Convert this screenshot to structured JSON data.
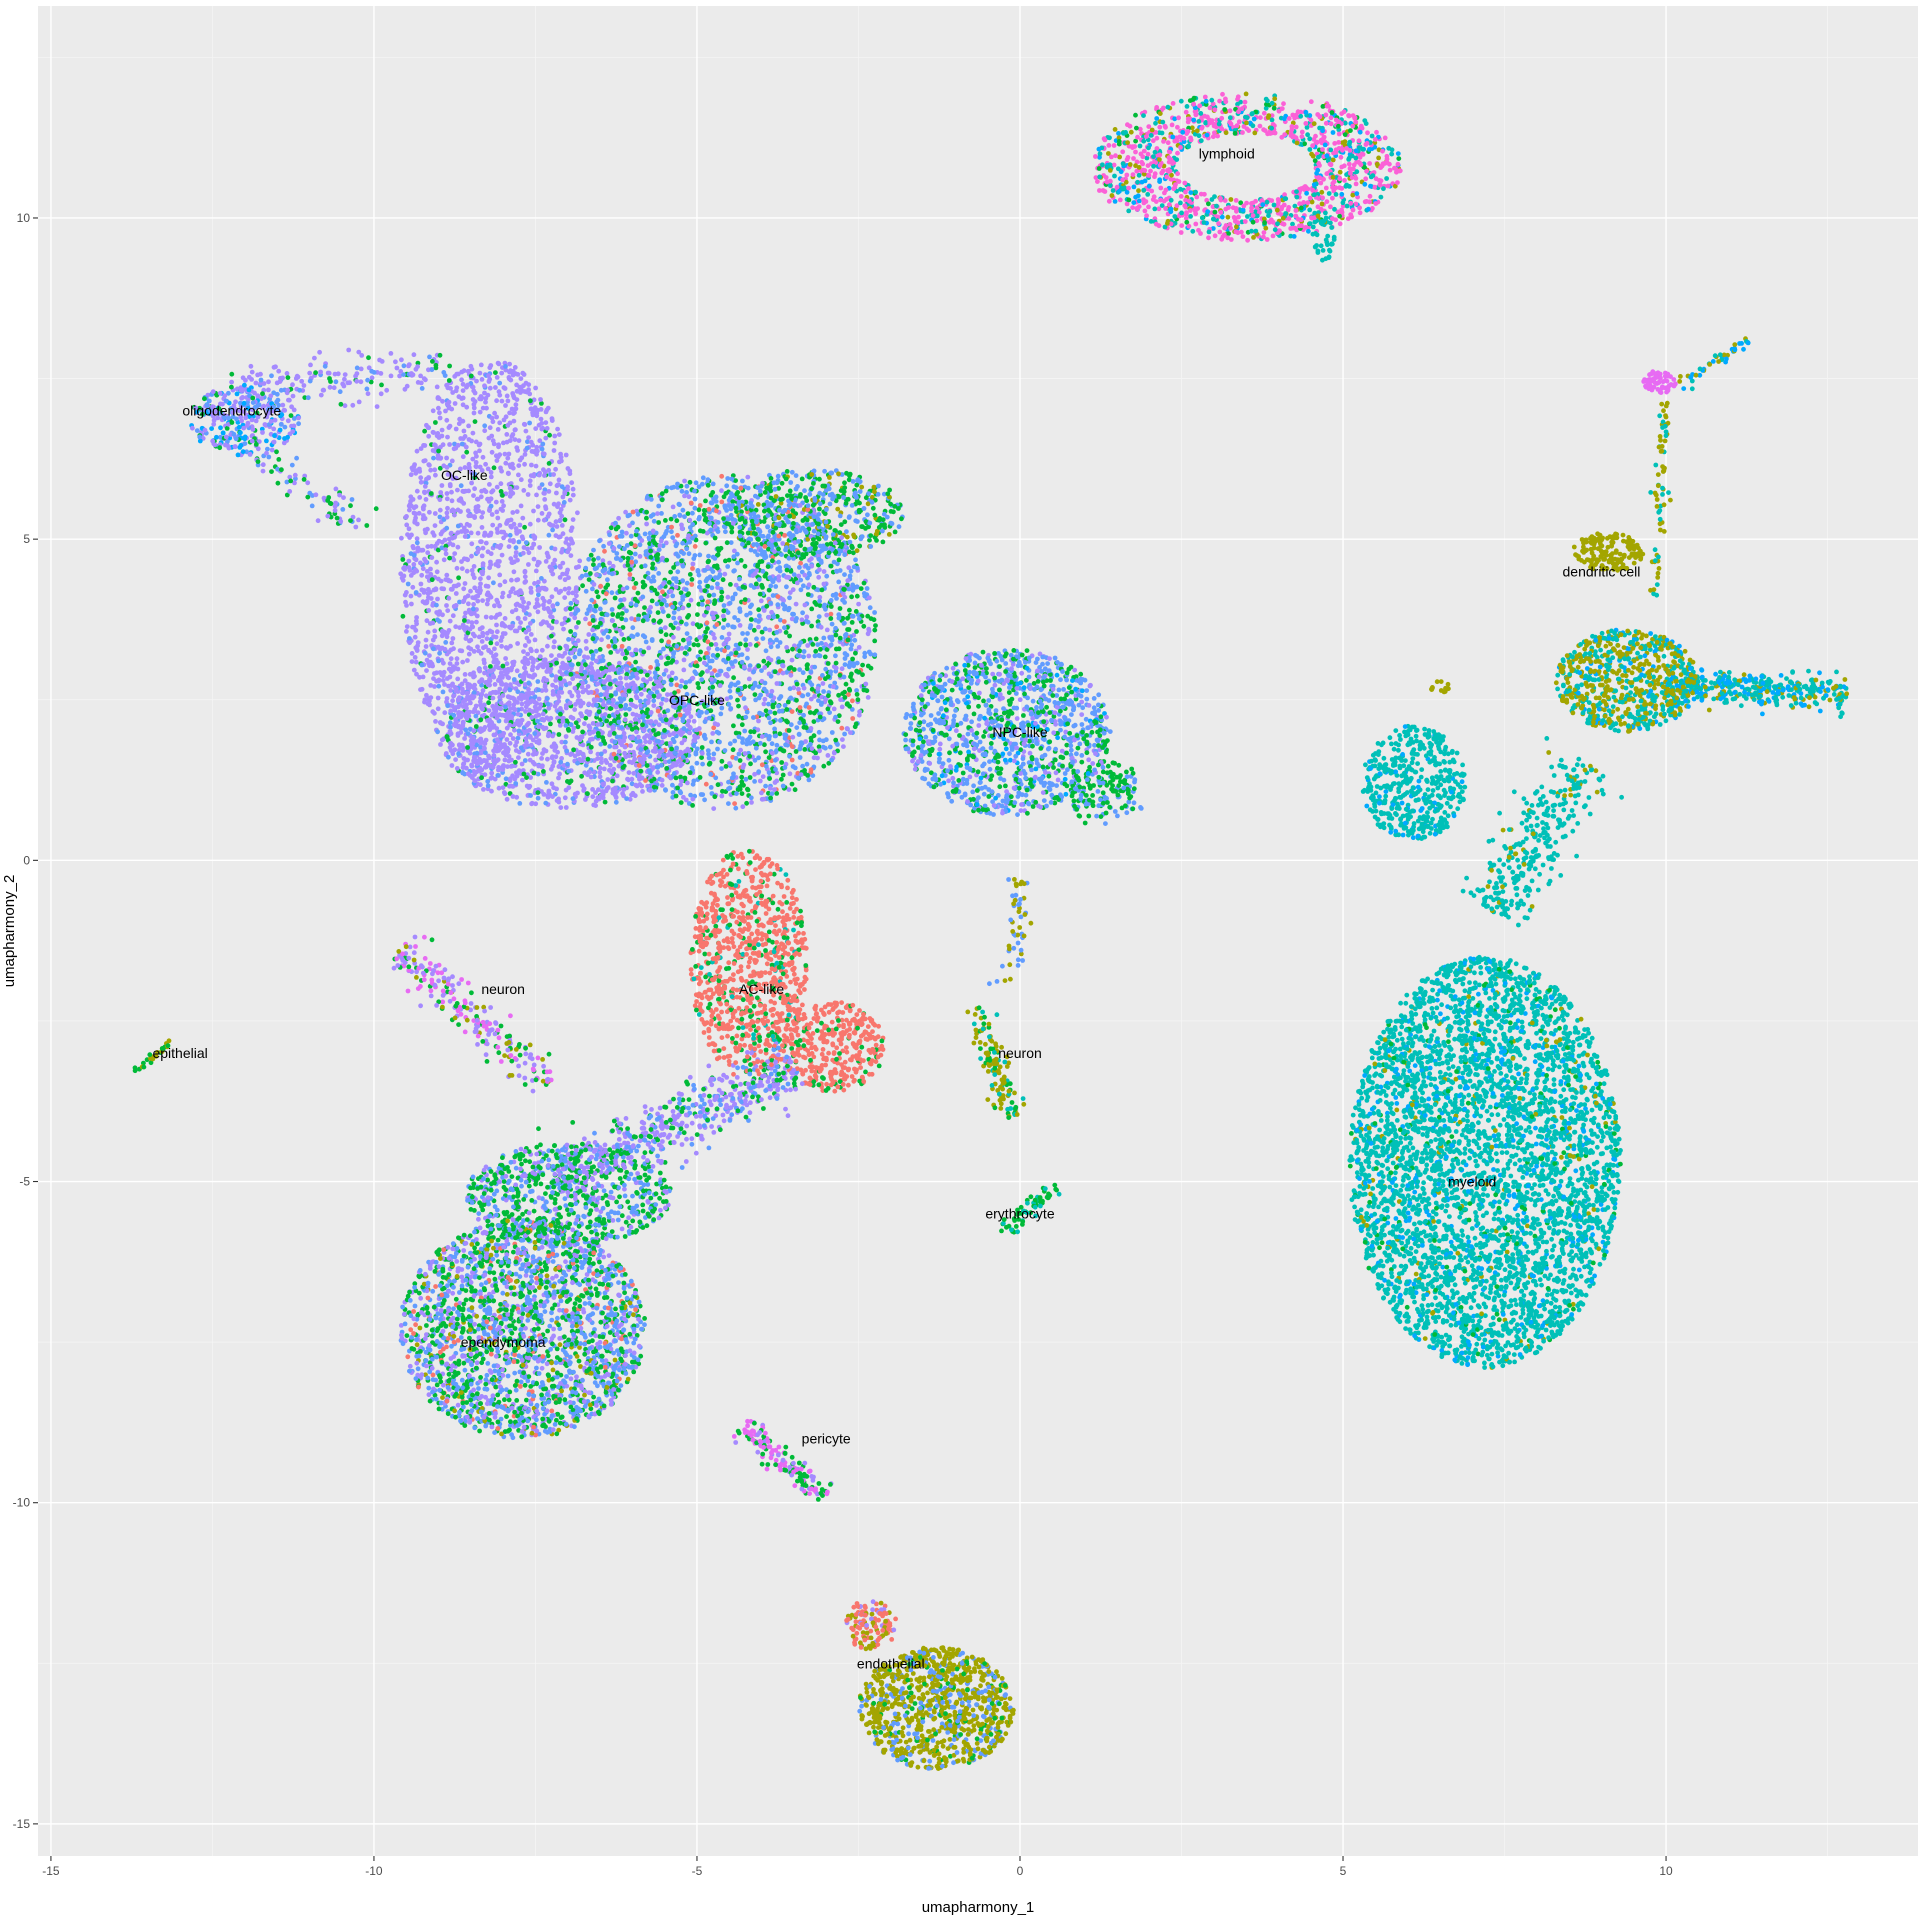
{
  "chart_data": {
    "type": "scatter",
    "title": "",
    "xlabel": "umapharmony_1",
    "ylabel": "umapharmony_2",
    "xlim": [
      -15.2,
      13.9
    ],
    "ylim": [
      -15.5,
      13.3
    ],
    "x_ticks": [
      -15,
      -10,
      -5,
      0,
      5,
      10
    ],
    "y_ticks": [
      -15,
      -10,
      -5,
      0,
      5,
      10
    ],
    "x_tick_labels": [
      "-15",
      "-10",
      "-5",
      "0",
      "5",
      "10"
    ],
    "y_tick_labels": [
      "-15",
      "-10",
      "-5",
      "0",
      "5",
      "10"
    ],
    "grid": true,
    "legend": "none",
    "colors": {
      "background": "#ebebeb",
      "grid_major": "#ffffff",
      "grid_minor": "#f5f5f5",
      "purple": "#a58aff",
      "blue": "#619cff",
      "green": "#00ba38",
      "teal": "#00c0b8",
      "cyan": "#00a9ff",
      "orange": "#f8766d",
      "olive": "#a3a500",
      "pink": "#fb61d7",
      "magenta": "#e76bf3"
    },
    "cluster_labels": [
      {
        "text": "lymphoid",
        "x": 3.2,
        "y": 11.0
      },
      {
        "text": "oligodendrocyte",
        "x": -12.2,
        "y": 7.0
      },
      {
        "text": "OC-like",
        "x": -8.6,
        "y": 6.0
      },
      {
        "text": "dendritic cell",
        "x": 9.0,
        "y": 4.5
      },
      {
        "text": "OPC-like",
        "x": -5.0,
        "y": 2.5
      },
      {
        "text": "NPC-like",
        "x": 0.0,
        "y": 2.0
      },
      {
        "text": "AC-like",
        "x": -4.0,
        "y": -2.0
      },
      {
        "text": "neuron",
        "x": -8.0,
        "y": -2.0
      },
      {
        "text": "neuron",
        "x": 0.0,
        "y": -3.0
      },
      {
        "text": "epithelial",
        "x": -13.0,
        "y": -3.0
      },
      {
        "text": "myeloid",
        "x": 7.0,
        "y": -5.0
      },
      {
        "text": "erythrocyte",
        "x": 0.0,
        "y": -5.5
      },
      {
        "text": "ependymoma",
        "x": -8.0,
        "y": -7.5
      },
      {
        "text": "pericyte",
        "x": -3.0,
        "y": -9.0
      },
      {
        "text": "endothelial",
        "x": -2.0,
        "y": -12.5
      }
    ],
    "clusters": [
      {
        "name": "lymphoid",
        "shape": "ring",
        "cx": 3.5,
        "cy": 10.8,
        "rx": 2.4,
        "ry": 1.15,
        "ring_width": 0.55,
        "n": 1300,
        "palette": [
          [
            "pink",
            0.55
          ],
          [
            "teal",
            0.2
          ],
          [
            "olive",
            0.1
          ],
          [
            "cyan",
            0.1
          ],
          [
            "green",
            0.05
          ]
        ]
      },
      {
        "name": "lymphoid-tail",
        "shape": "blob",
        "cx": 4.7,
        "cy": 9.7,
        "rx": 0.2,
        "ry": 0.4,
        "n": 40,
        "palette": [
          [
            "teal",
            1.0
          ]
        ]
      },
      {
        "name": "oligodendrocyte",
        "shape": "blob",
        "cx": -12.0,
        "cy": 6.85,
        "rx": 0.85,
        "ry": 0.55,
        "n": 300,
        "palette": [
          [
            "purple",
            0.45
          ],
          [
            "blue",
            0.25
          ],
          [
            "cyan",
            0.2
          ],
          [
            "green",
            0.1
          ]
        ]
      },
      {
        "name": "oligo-arm",
        "shape": "band",
        "x1": -12.2,
        "y1": 7.3,
        "x2": -8.8,
        "y2": 7.7,
        "width": 0.35,
        "n": 180,
        "palette": [
          [
            "purple",
            0.7
          ],
          [
            "blue",
            0.15
          ],
          [
            "green",
            0.15
          ]
        ]
      },
      {
        "name": "oligo-wisp",
        "shape": "band",
        "x1": -11.8,
        "y1": 6.3,
        "x2": -10.1,
        "y2": 5.2,
        "width": 0.25,
        "n": 70,
        "palette": [
          [
            "green",
            0.4
          ],
          [
            "purple",
            0.4
          ],
          [
            "blue",
            0.2
          ]
        ]
      },
      {
        "name": "OC-like",
        "shape": "blob",
        "cx": -8.2,
        "cy": 4.6,
        "rx": 1.4,
        "ry": 3.2,
        "n": 1700,
        "palette": [
          [
            "purple",
            0.88
          ],
          [
            "blue",
            0.07
          ],
          [
            "green",
            0.05
          ]
        ]
      },
      {
        "name": "OPC-like-left",
        "shape": "blob",
        "cx": -7.0,
        "cy": 2.0,
        "rx": 2.0,
        "ry": 1.2,
        "n": 1200,
        "palette": [
          [
            "purple",
            0.75
          ],
          [
            "blue",
            0.15
          ],
          [
            "green",
            0.1
          ]
        ]
      },
      {
        "name": "OPC-like",
        "shape": "blob",
        "cx": -4.6,
        "cy": 3.4,
        "rx": 2.4,
        "ry": 2.6,
        "n": 2600,
        "palette": [
          [
            "blue",
            0.45
          ],
          [
            "green",
            0.3
          ],
          [
            "purple",
            0.2
          ],
          [
            "orange",
            0.05
          ]
        ]
      },
      {
        "name": "OPC-like-top",
        "shape": "blob",
        "cx": -3.2,
        "cy": 5.4,
        "rx": 1.4,
        "ry": 0.7,
        "n": 500,
        "palette": [
          [
            "green",
            0.5
          ],
          [
            "blue",
            0.4
          ],
          [
            "olive",
            0.1
          ]
        ]
      },
      {
        "name": "NPC-like",
        "shape": "blob",
        "cx": -0.2,
        "cy": 2.0,
        "rx": 1.6,
        "ry": 1.3,
        "n": 1200,
        "palette": [
          [
            "blue",
            0.5
          ],
          [
            "green",
            0.3
          ],
          [
            "purple",
            0.15
          ],
          [
            "cyan",
            0.05
          ]
        ]
      },
      {
        "name": "NPC-like-tail",
        "shape": "band",
        "x1": 0.8,
        "y1": 1.0,
        "x2": 1.8,
        "y2": 1.2,
        "width": 0.4,
        "n": 150,
        "palette": [
          [
            "green",
            0.6
          ],
          [
            "blue",
            0.4
          ]
        ]
      },
      {
        "name": "NPC-drip",
        "shape": "band",
        "x1": 0.0,
        "y1": -0.3,
        "x2": -0.2,
        "y2": -2.0,
        "width": 0.2,
        "n": 50,
        "palette": [
          [
            "blue",
            0.6
          ],
          [
            "olive",
            0.4
          ]
        ]
      },
      {
        "name": "AC-like",
        "shape": "blob",
        "cx": -4.2,
        "cy": -1.6,
        "rx": 0.9,
        "ry": 1.8,
        "n": 900,
        "palette": [
          [
            "orange",
            0.8
          ],
          [
            "green",
            0.15
          ],
          [
            "teal",
            0.05
          ]
        ]
      },
      {
        "name": "AC-like-hook",
        "shape": "blob",
        "cx": -2.9,
        "cy": -2.9,
        "rx": 0.8,
        "ry": 0.7,
        "n": 350,
        "palette": [
          [
            "orange",
            0.85
          ],
          [
            "green",
            0.15
          ]
        ]
      },
      {
        "name": "neuron-left",
        "shape": "band",
        "x1": -9.6,
        "y1": -1.4,
        "x2": -7.3,
        "y2": -3.5,
        "width": 0.3,
        "n": 220,
        "palette": [
          [
            "purple",
            0.4
          ],
          [
            "magenta",
            0.35
          ],
          [
            "green",
            0.15
          ],
          [
            "olive",
            0.1
          ]
        ]
      },
      {
        "name": "epithelial",
        "shape": "band",
        "x1": -13.7,
        "y1": -3.3,
        "x2": -13.1,
        "y2": -2.8,
        "width": 0.06,
        "n": 25,
        "palette": [
          [
            "olive",
            0.6
          ],
          [
            "green",
            0.4
          ]
        ]
      },
      {
        "name": "bridge",
        "shape": "band",
        "x1": -3.5,
        "y1": -3.2,
        "x2": -7.2,
        "y2": -5.0,
        "width": 0.45,
        "n": 550,
        "palette": [
          [
            "purple",
            0.55
          ],
          [
            "green",
            0.25
          ],
          [
            "blue",
            0.2
          ]
        ]
      },
      {
        "name": "ependymoma",
        "shape": "blob",
        "cx": -7.7,
        "cy": -7.3,
        "rx": 1.9,
        "ry": 1.7,
        "n": 2200,
        "palette": [
          [
            "green",
            0.35
          ],
          [
            "blue",
            0.35
          ],
          [
            "purple",
            0.2
          ],
          [
            "olive",
            0.05
          ],
          [
            "orange",
            0.05
          ]
        ]
      },
      {
        "name": "ependymoma-neck",
        "shape": "blob",
        "cx": -7.0,
        "cy": -5.2,
        "rx": 1.6,
        "ry": 0.8,
        "n": 700,
        "palette": [
          [
            "green",
            0.5
          ],
          [
            "blue",
            0.3
          ],
          [
            "purple",
            0.2
          ]
        ]
      },
      {
        "name": "neuron-right",
        "shape": "band",
        "x1": -0.7,
        "y1": -2.3,
        "x2": -0.1,
        "y2": -4.0,
        "width": 0.2,
        "n": 120,
        "palette": [
          [
            "olive",
            0.6
          ],
          [
            "green",
            0.2
          ],
          [
            "teal",
            0.2
          ]
        ]
      },
      {
        "name": "erythrocyte",
        "shape": "band",
        "x1": -0.3,
        "y1": -5.8,
        "x2": 0.6,
        "y2": -5.1,
        "width": 0.14,
        "n": 60,
        "palette": [
          [
            "green",
            0.7
          ],
          [
            "teal",
            0.3
          ]
        ]
      },
      {
        "name": "pericyte",
        "shape": "band",
        "x1": -4.3,
        "y1": -8.8,
        "x2": -3.0,
        "y2": -9.9,
        "width": 0.2,
        "n": 140,
        "palette": [
          [
            "magenta",
            0.5
          ],
          [
            "green",
            0.3
          ],
          [
            "purple",
            0.2
          ]
        ]
      },
      {
        "name": "endothelial",
        "shape": "blob",
        "cx": -1.3,
        "cy": -13.2,
        "rx": 1.2,
        "ry": 0.95,
        "n": 950,
        "palette": [
          [
            "olive",
            0.7
          ],
          [
            "blue",
            0.2
          ],
          [
            "green",
            0.1
          ]
        ]
      },
      {
        "name": "endothelial-top",
        "shape": "blob",
        "cx": -2.3,
        "cy": -11.9,
        "rx": 0.4,
        "ry": 0.4,
        "n": 120,
        "palette": [
          [
            "orange",
            0.5
          ],
          [
            "olive",
            0.4
          ],
          [
            "purple",
            0.1
          ]
        ]
      },
      {
        "name": "myeloid",
        "shape": "blob",
        "cx": 7.2,
        "cy": -4.7,
        "rx": 2.1,
        "ry": 3.2,
        "n": 4200,
        "palette": [
          [
            "teal",
            0.82
          ],
          [
            "cyan",
            0.1
          ],
          [
            "olive",
            0.04
          ],
          [
            "green",
            0.04
          ]
        ]
      },
      {
        "name": "myeloid-upper",
        "shape": "blob",
        "cx": 6.1,
        "cy": 1.2,
        "rx": 0.8,
        "ry": 0.9,
        "n": 450,
        "palette": [
          [
            "teal",
            0.9
          ],
          [
            "cyan",
            0.1
          ]
        ]
      },
      {
        "name": "myeloid-stalk",
        "shape": "band",
        "x1": 8.8,
        "y1": 1.5,
        "x2": 7.3,
        "y2": -0.8,
        "width": 0.5,
        "n": 300,
        "palette": [
          [
            "teal",
            0.9
          ],
          [
            "olive",
            0.1
          ]
        ]
      },
      {
        "name": "dendritic cell",
        "shape": "blob",
        "cx": 9.4,
        "cy": 2.8,
        "rx": 1.1,
        "ry": 0.8,
        "n": 700,
        "palette": [
          [
            "olive",
            0.5
          ],
          [
            "teal",
            0.4
          ],
          [
            "cyan",
            0.1
          ]
        ]
      },
      {
        "name": "dendritic-arm",
        "shape": "band",
        "x1": 10.0,
        "y1": 2.7,
        "x2": 12.8,
        "y2": 2.6,
        "width": 0.28,
        "n": 350,
        "palette": [
          [
            "teal",
            0.5
          ],
          [
            "cyan",
            0.3
          ],
          [
            "olive",
            0.2
          ]
        ]
      },
      {
        "name": "dendritic-top",
        "shape": "blob",
        "cx": 9.1,
        "cy": 4.8,
        "rx": 0.55,
        "ry": 0.3,
        "n": 150,
        "palette": [
          [
            "olive",
            1.0
          ]
        ]
      },
      {
        "name": "dendritic-stalk",
        "shape": "band",
        "x1": 9.8,
        "y1": 4.0,
        "x2": 10.0,
        "y2": 7.2,
        "width": 0.1,
        "n": 70,
        "palette": [
          [
            "olive",
            0.7
          ],
          [
            "teal",
            0.3
          ]
        ]
      },
      {
        "name": "dendritic-tip",
        "shape": "blob",
        "cx": 9.9,
        "cy": 7.45,
        "rx": 0.25,
        "ry": 0.18,
        "n": 60,
        "palette": [
          [
            "magenta",
            1.0
          ]
        ]
      },
      {
        "name": "dendritic-wisp",
        "shape": "band",
        "x1": 10.2,
        "y1": 7.4,
        "x2": 11.3,
        "y2": 8.1,
        "width": 0.1,
        "n": 40,
        "palette": [
          [
            "cyan",
            0.5
          ],
          [
            "teal",
            0.3
          ],
          [
            "olive",
            0.2
          ]
        ]
      },
      {
        "name": "olive-speck",
        "shape": "blob",
        "cx": 6.5,
        "cy": 2.7,
        "rx": 0.15,
        "ry": 0.1,
        "n": 12,
        "palette": [
          [
            "olive",
            1.0
          ]
        ]
      }
    ]
  }
}
